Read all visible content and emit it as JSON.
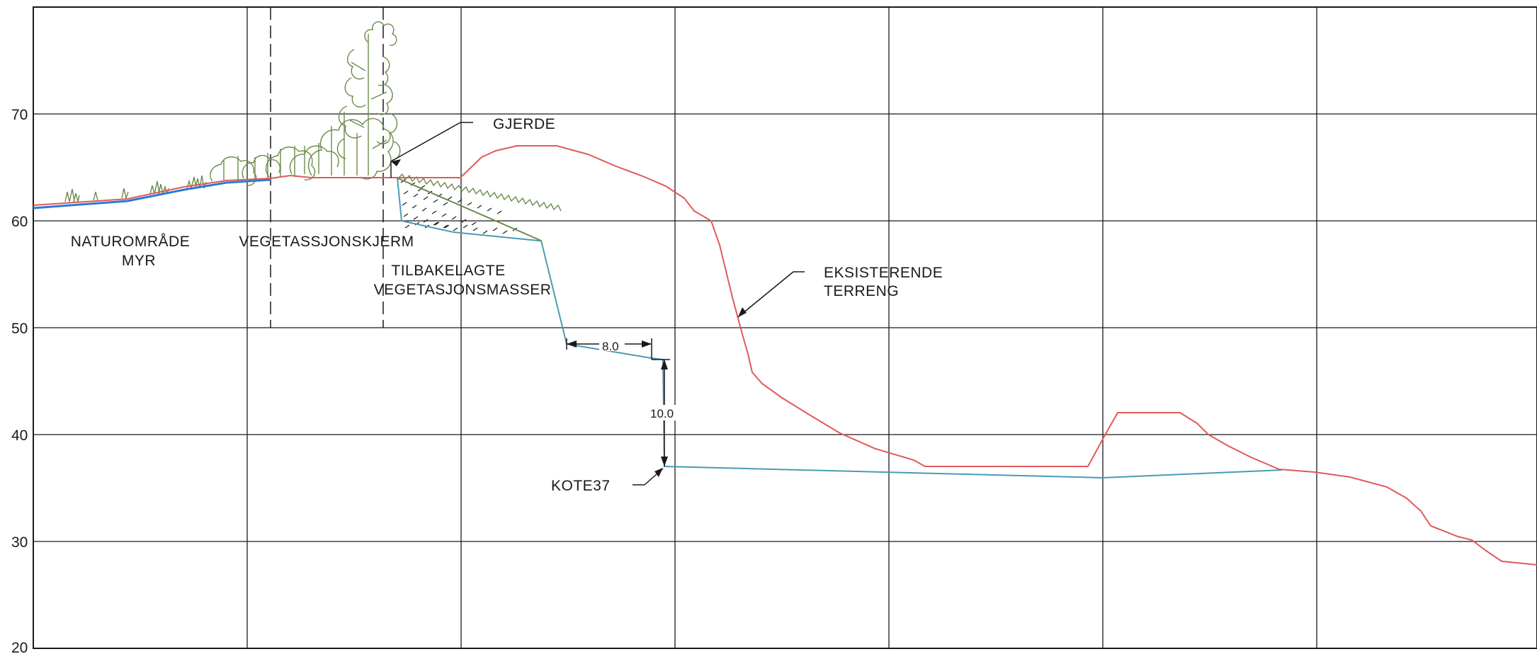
{
  "y_axis": {
    "ticks": [
      "70",
      "60",
      "50",
      "40",
      "30",
      "20"
    ]
  },
  "labels": {
    "naturomrade_line1": "NATUROMRÅDE",
    "naturomrade_line2": "MYR",
    "vegetasjonskjerm": "VEGETASSJONSKJERM",
    "tilbakelagte_line1": "TILBAKELAGTE",
    "tilbakelagte_line2": "VEGETASJONSMASSER",
    "gjerde": "GJERDE",
    "eksisterende_line1": "EKSISTERENDE",
    "eksisterende_line2": "TERRENG",
    "kote": "KOTE37"
  },
  "dimensions": {
    "horizontal": "8.0",
    "vertical": "10.0"
  },
  "colors": {
    "existing_terrain": "#e05a5a",
    "proposed_profile": "#4a9bb5",
    "bog_line": "#2a7ad4",
    "vegetation": "#6b8a4a",
    "grid": "#1a1a1a"
  }
}
